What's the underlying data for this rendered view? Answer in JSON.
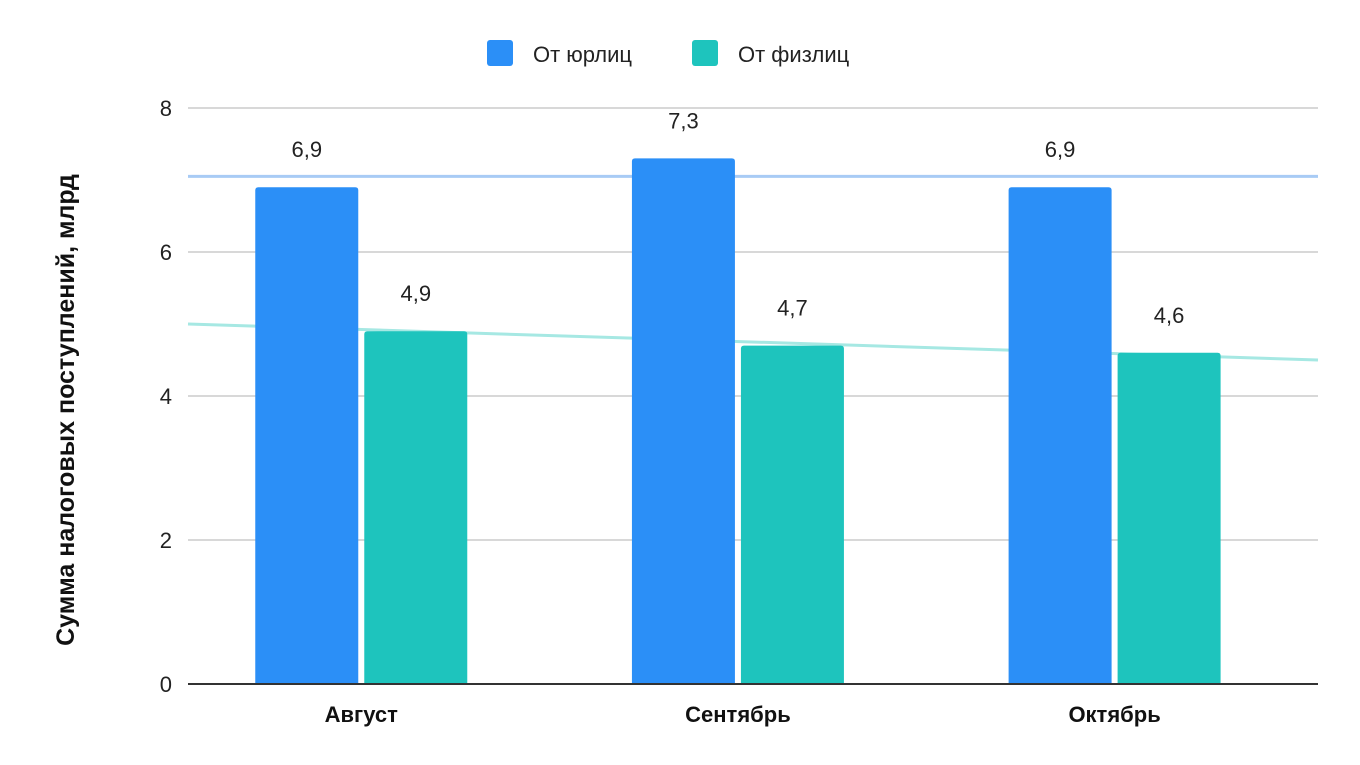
{
  "chart_data": {
    "type": "bar",
    "title": "",
    "xlabel": "",
    "ylabel": "Сумма налоговых поступлений, млрд",
    "ylim": [
      0,
      8
    ],
    "yticks": [
      "0",
      "2",
      "4",
      "6",
      "8"
    ],
    "grid": true,
    "legend_position": "top-center",
    "categories": [
      "Август",
      "Сентябрь",
      "Октябрь"
    ],
    "series": [
      {
        "name": "От юрлиц",
        "color": "#2b8ff7",
        "values": [
          6.9,
          7.3,
          6.9
        ],
        "labels": [
          "6,9",
          "7,3",
          "6,9"
        ]
      },
      {
        "name": "От физлиц",
        "color": "#1ec4bd",
        "values": [
          4.9,
          4.7,
          4.6
        ],
        "labels": [
          "4,9",
          "4,7",
          "4,6"
        ]
      }
    ],
    "trendlines": [
      {
        "series": "От юрлиц",
        "color": "#a8cbf5",
        "start": 7.05,
        "end": 7.05
      },
      {
        "series": "От физлиц",
        "color": "#a6e8e3",
        "start": 5.0,
        "end": 4.5
      }
    ]
  }
}
